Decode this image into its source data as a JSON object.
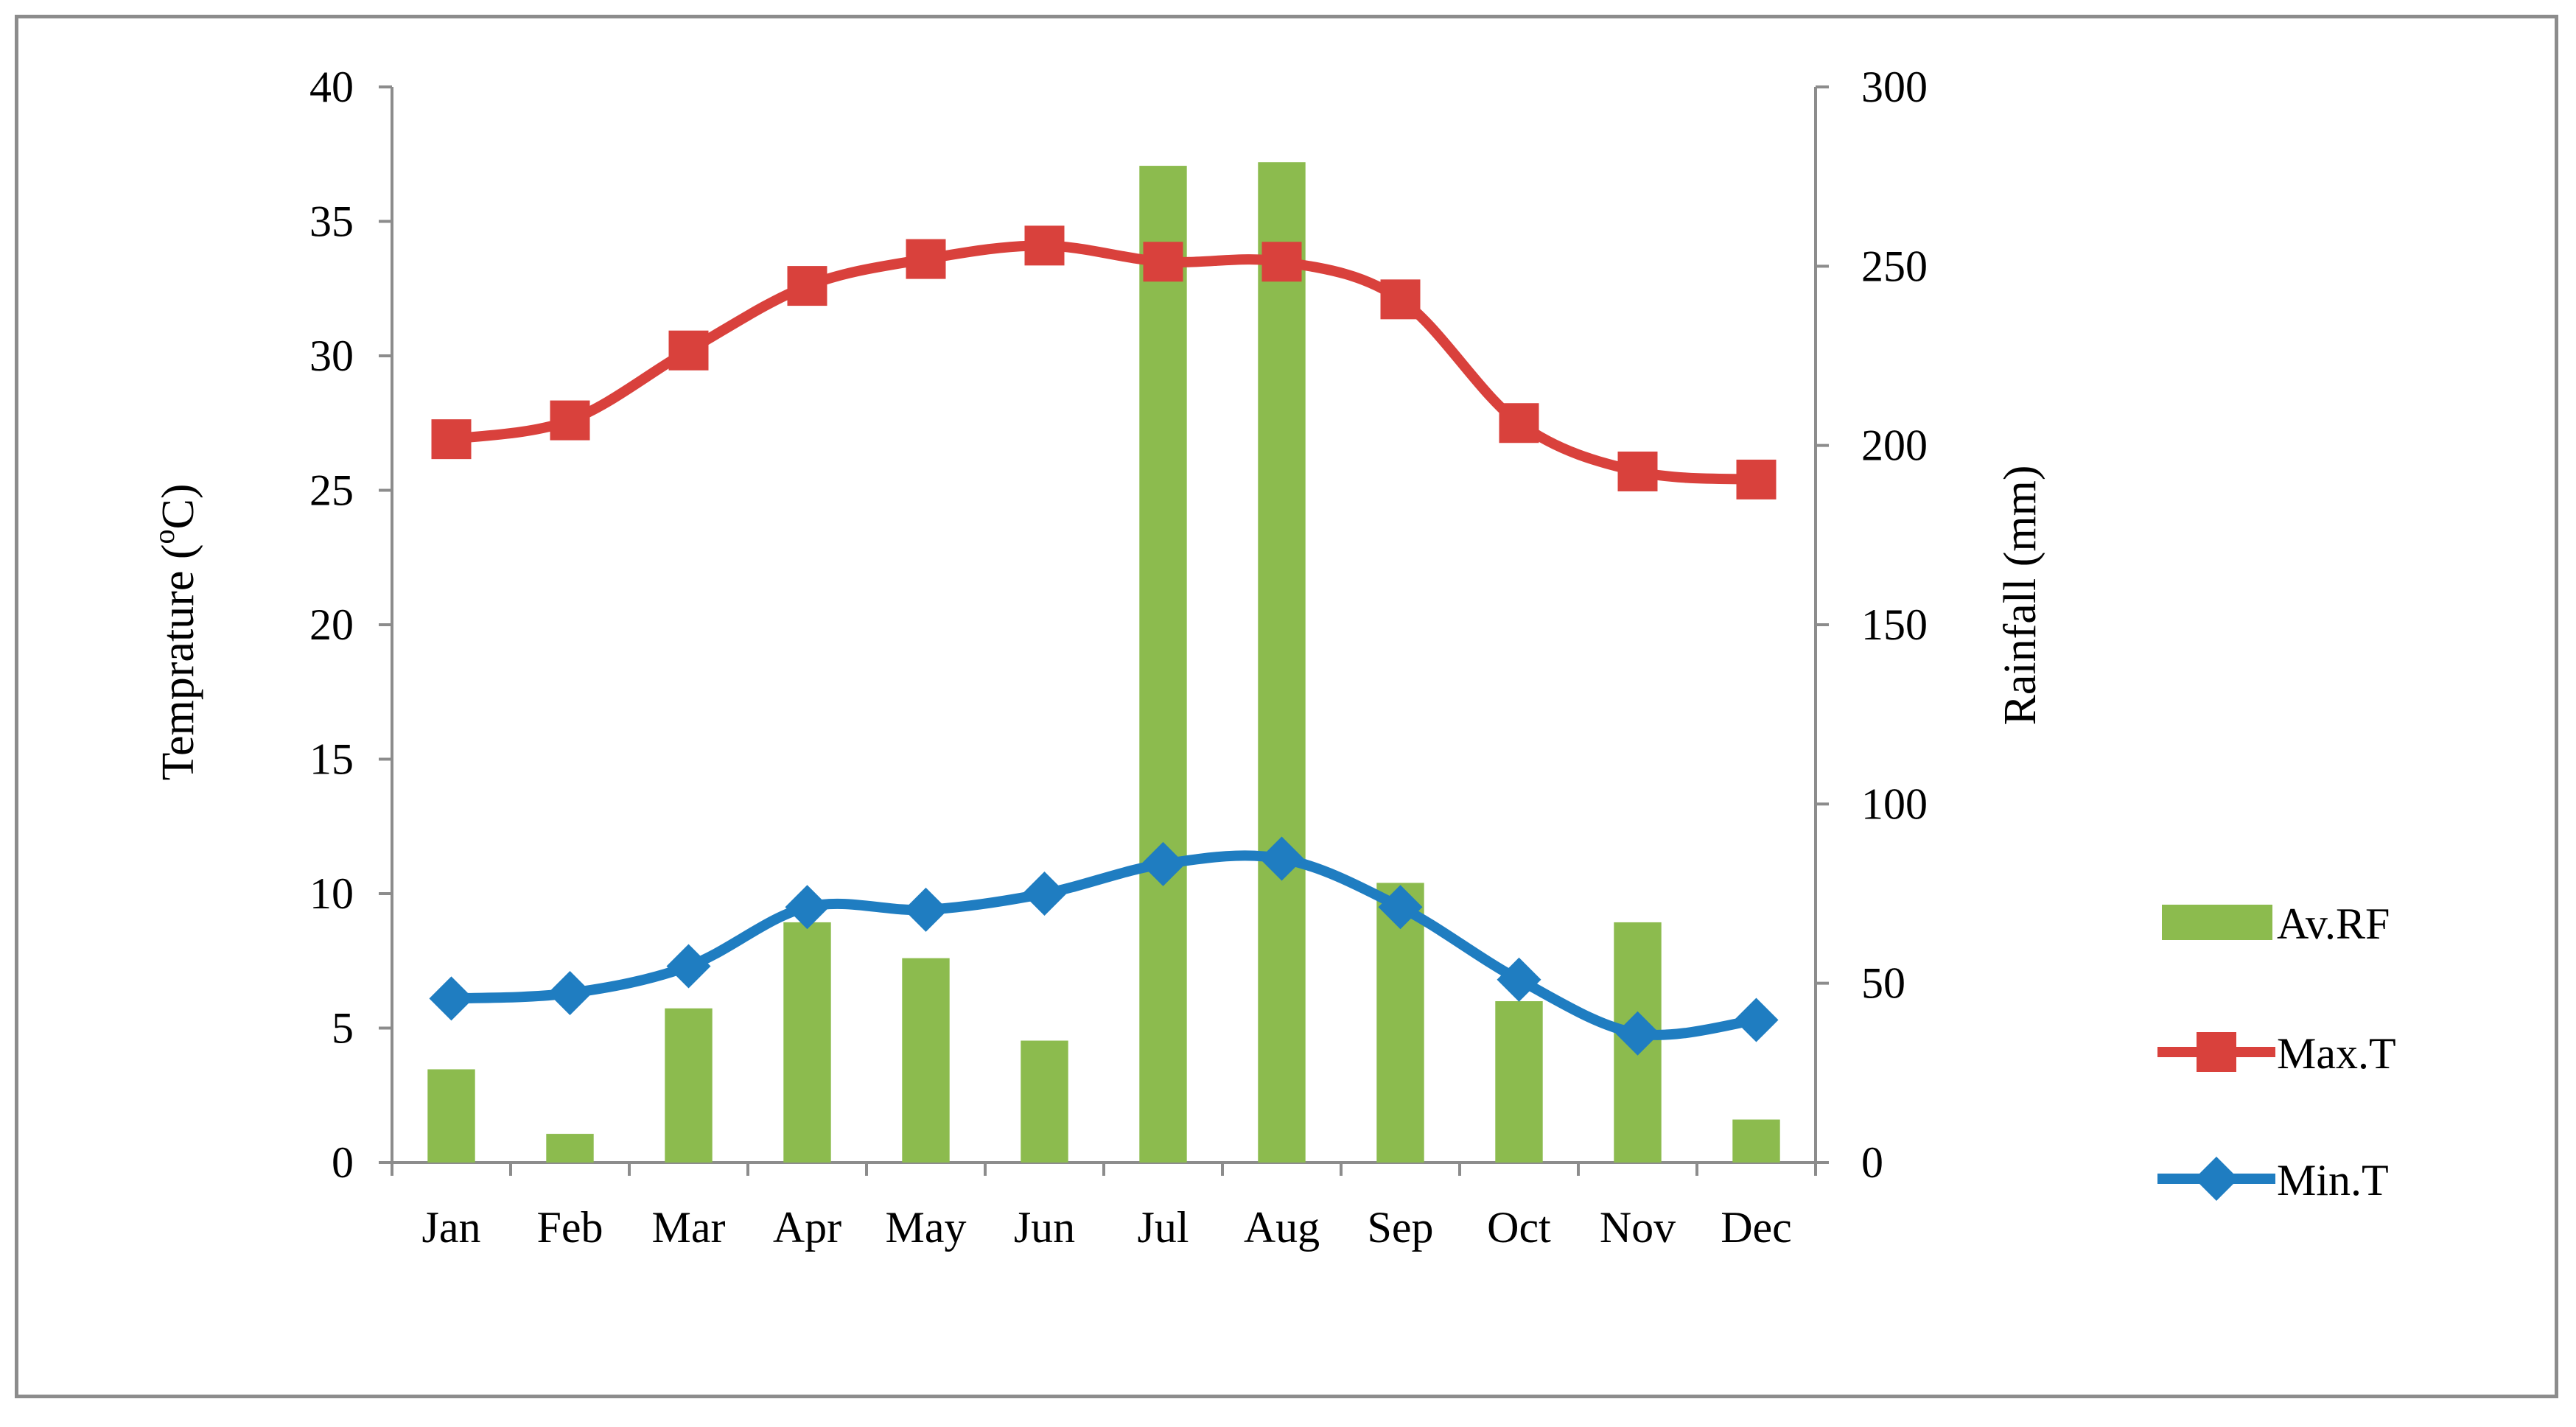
{
  "chart_data": {
    "type": "bar+line",
    "categories": [
      "Jan",
      "Feb",
      "Mar",
      "Apr",
      "May",
      "Jun",
      "Jul",
      "Aug",
      "Sep",
      "Oct",
      "Nov",
      "Dec"
    ],
    "series": [
      {
        "name": "Av.RF",
        "type": "bar",
        "axis": "right",
        "color": "#8cbb4e",
        "values": [
          26,
          8,
          43,
          67,
          57,
          34,
          278,
          279,
          78,
          45,
          67,
          12
        ]
      },
      {
        "name": "Max.T",
        "type": "line",
        "axis": "left",
        "color": "#d9413c",
        "marker": "square",
        "values": [
          26.9,
          27.6,
          30.2,
          32.6,
          33.6,
          34.1,
          33.5,
          33.5,
          32.1,
          27.5,
          25.7,
          25.4
        ]
      },
      {
        "name": "Min.T",
        "type": "line",
        "axis": "left",
        "color": "#1f7dc1",
        "marker": "diamond",
        "values": [
          6.1,
          6.3,
          7.3,
          9.5,
          9.4,
          10.0,
          11.1,
          11.3,
          9.5,
          6.8,
          4.8,
          5.3
        ]
      }
    ],
    "y_left": {
      "label_prefix": "Temprature (",
      "label_sup": "o",
      "label_suffix": "C)",
      "min": 0,
      "max": 40,
      "step": 5
    },
    "y_right": {
      "label": "Rainfall (mm)",
      "min": 0,
      "max": 300,
      "step": 50
    },
    "legend": {
      "placement": "right"
    }
  }
}
